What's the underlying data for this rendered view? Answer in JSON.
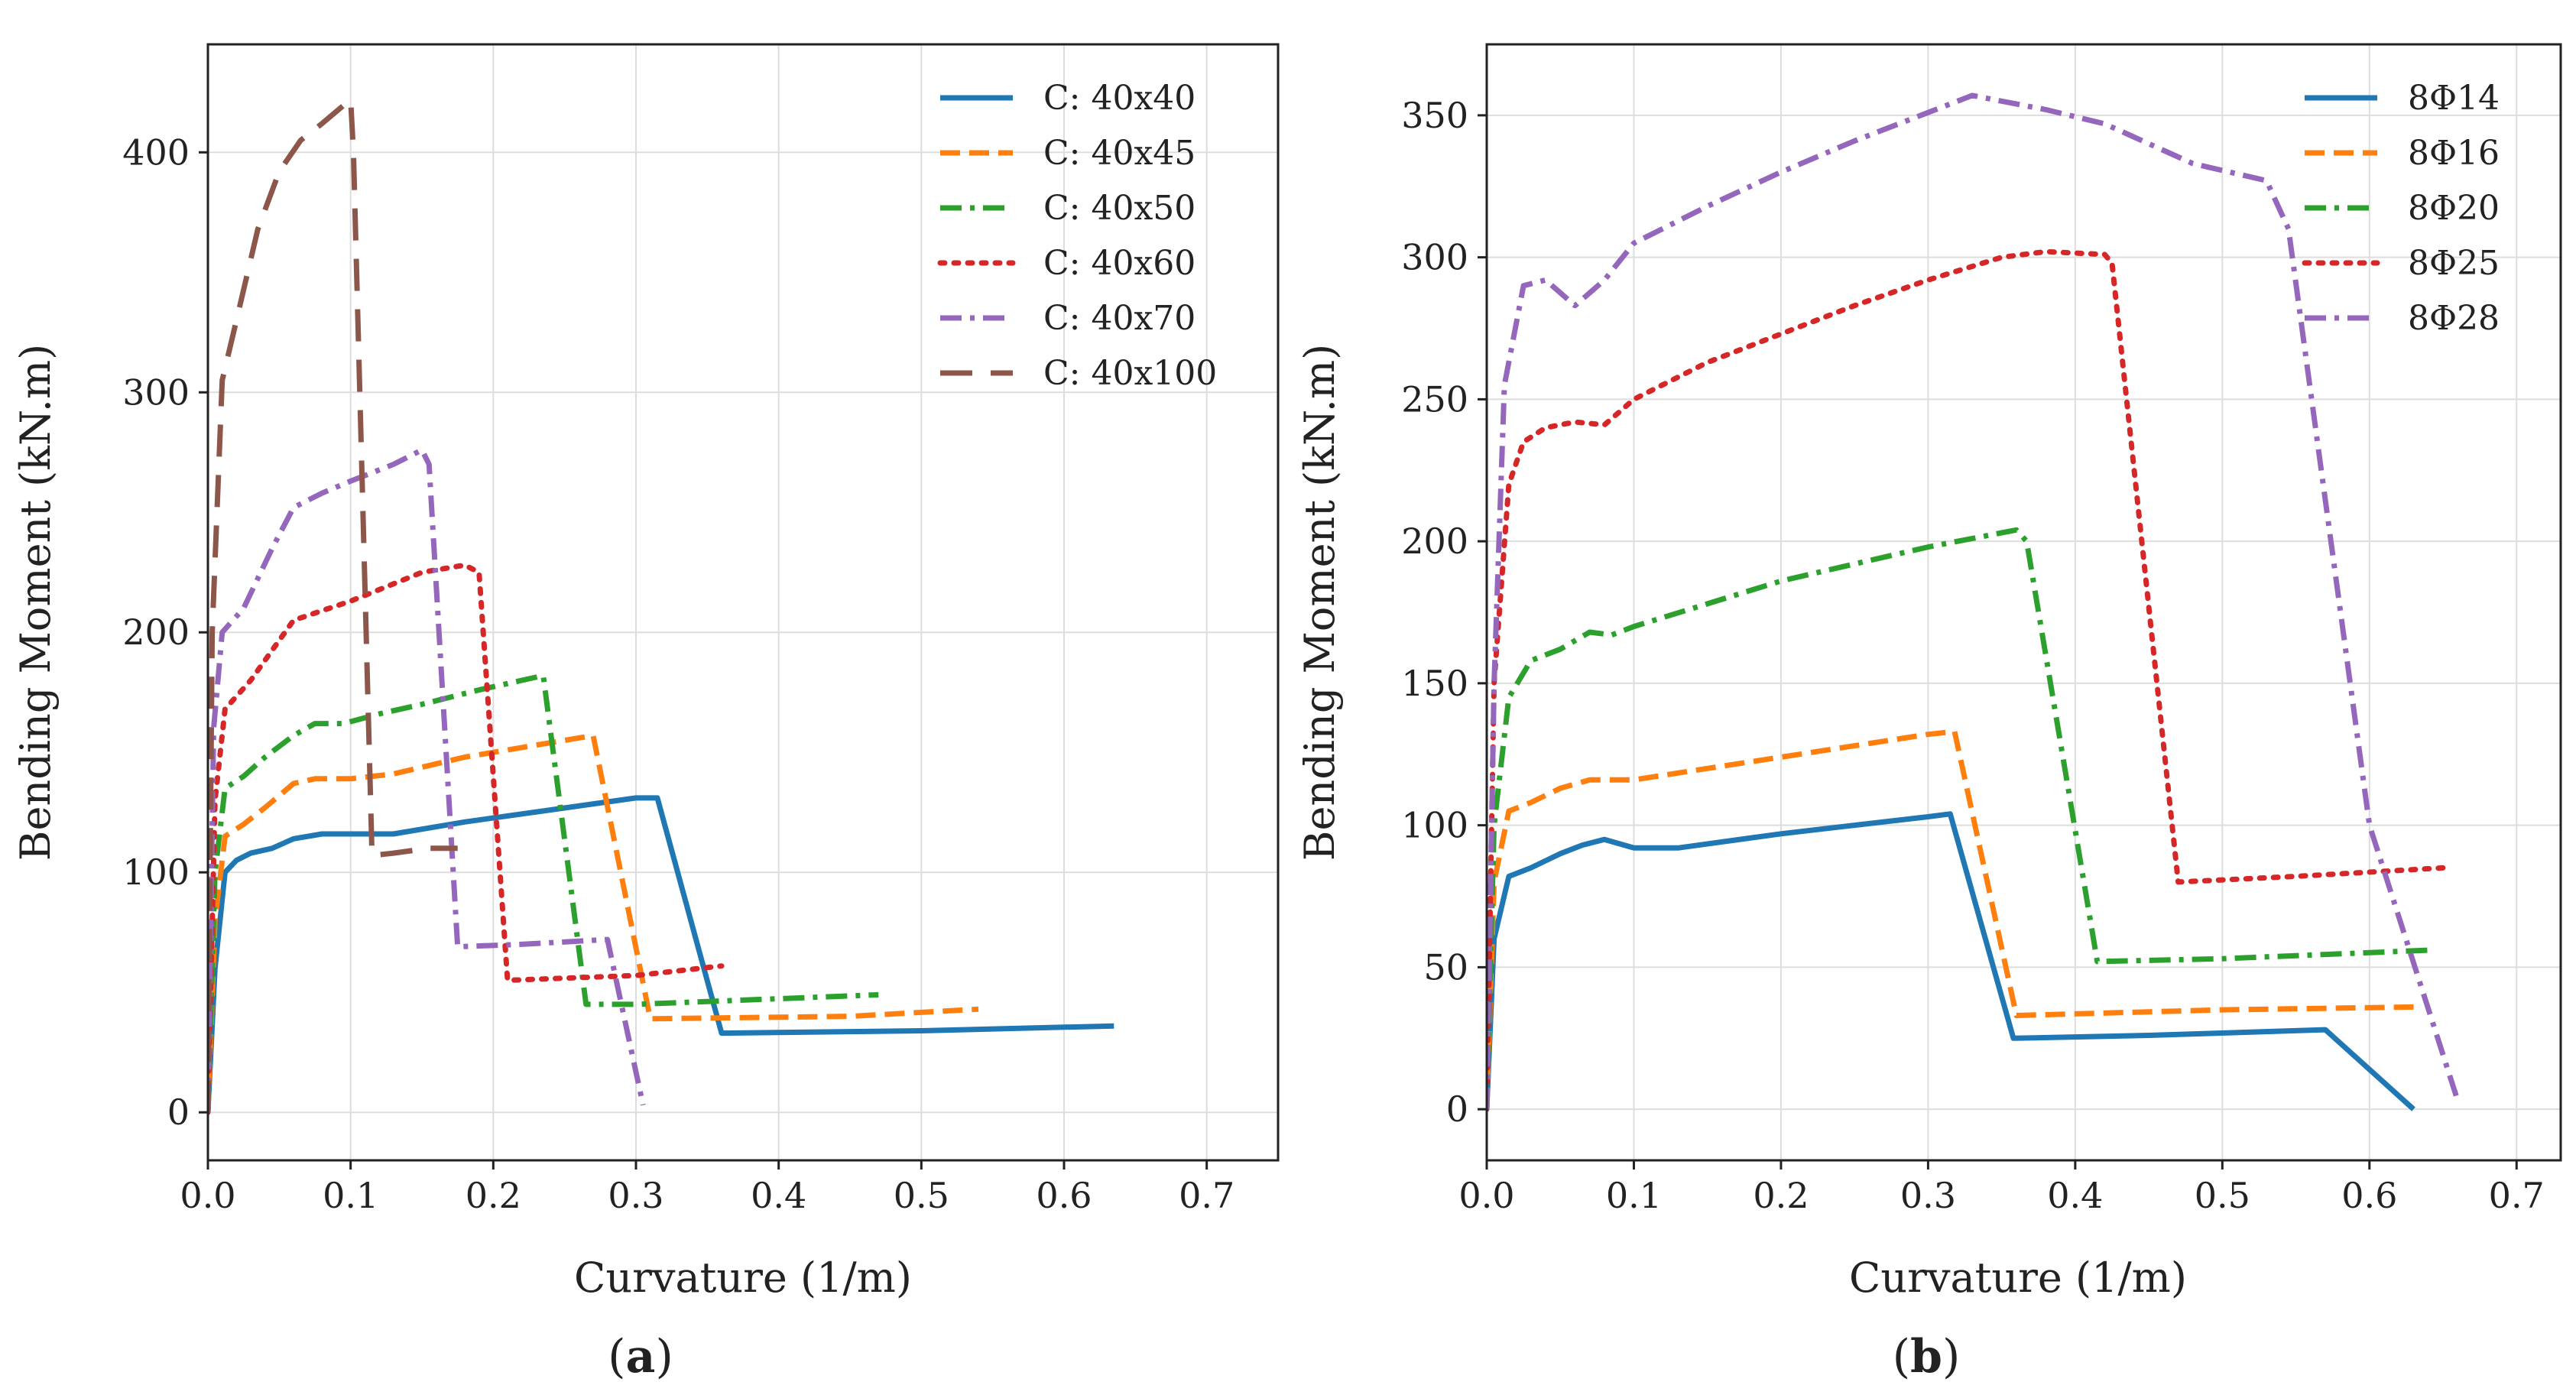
{
  "colors": {
    "blue": "#1f77b4",
    "orange": "#ff7f0e",
    "green": "#2ca02c",
    "red": "#d62728",
    "purple": "#9467bd",
    "brown": "#8c564b"
  },
  "chart_data": [
    {
      "type": "line",
      "panel_label": "a",
      "xlabel": "Curvature (1/m)",
      "ylabel": "Bending Moment (kN.m)",
      "xlim": [
        0,
        0.75
      ],
      "ylim": [
        -20,
        445
      ],
      "xticks": [
        "0.0",
        "0.1",
        "0.2",
        "0.3",
        "0.4",
        "0.5",
        "0.6",
        "0.7"
      ],
      "yticks": [
        "0",
        "100",
        "200",
        "300",
        "400"
      ],
      "grid": true,
      "legend_position": "top-right",
      "series": [
        {
          "name": "C: 40x40",
          "color": "blue",
          "dash": "solid",
          "x": [
            0,
            0.005,
            0.012,
            0.02,
            0.03,
            0.045,
            0.06,
            0.08,
            0.1,
            0.13,
            0.18,
            0.24,
            0.3,
            0.315,
            0.36,
            0.5,
            0.635
          ],
          "y": [
            0,
            60,
            100,
            105,
            108,
            110,
            114,
            116,
            116,
            116,
            121,
            126,
            131,
            131,
            33,
            34,
            36
          ]
        },
        {
          "name": "C: 40x45",
          "color": "orange",
          "dash": "dashed",
          "x": [
            0,
            0.005,
            0.012,
            0.025,
            0.04,
            0.06,
            0.075,
            0.1,
            0.13,
            0.18,
            0.23,
            0.27,
            0.31,
            0.45,
            0.54
          ],
          "y": [
            0,
            80,
            115,
            120,
            127,
            137,
            139,
            139,
            141,
            148,
            153,
            157,
            39,
            40,
            43
          ]
        },
        {
          "name": "C: 40x50",
          "color": "green",
          "dash": "dashdot",
          "x": [
            0,
            0.005,
            0.012,
            0.025,
            0.04,
            0.06,
            0.075,
            0.095,
            0.12,
            0.15,
            0.19,
            0.235,
            0.265,
            0.3,
            0.47
          ],
          "y": [
            0,
            100,
            135,
            140,
            148,
            157,
            162,
            162,
            166,
            170,
            176,
            182,
            45,
            45,
            49
          ]
        },
        {
          "name": "C: 40x60",
          "color": "red",
          "dash": "dotted",
          "x": [
            0,
            0.005,
            0.012,
            0.03,
            0.06,
            0.1,
            0.15,
            0.18,
            0.19,
            0.21,
            0.3,
            0.36
          ],
          "y": [
            0,
            130,
            168,
            180,
            205,
            213,
            225,
            228,
            225,
            55,
            57,
            61
          ]
        },
        {
          "name": "C: 40x70",
          "color": "purple",
          "dash": "dashdot",
          "x": [
            0,
            0.004,
            0.01,
            0.025,
            0.045,
            0.06,
            0.08,
            0.1,
            0.13,
            0.15,
            0.155,
            0.175,
            0.22,
            0.28,
            0.305
          ],
          "y": [
            0,
            160,
            200,
            210,
            235,
            252,
            258,
            263,
            270,
            276,
            270,
            69,
            70,
            72,
            3
          ]
        },
        {
          "name": "C: 40x100",
          "color": "brown",
          "dash": "longdash",
          "x": [
            0,
            0.003,
            0.01,
            0.02,
            0.035,
            0.05,
            0.065,
            0.08,
            0.1,
            0.102,
            0.115,
            0.13,
            0.155,
            0.175
          ],
          "y": [
            0,
            200,
            305,
            330,
            368,
            392,
            405,
            412,
            422,
            400,
            107,
            108,
            110,
            110
          ]
        }
      ]
    },
    {
      "type": "line",
      "panel_label": "b",
      "xlabel": "Curvature (1/m)",
      "ylabel": "Bending Moment (kN.m)",
      "xlim": [
        0,
        0.73
      ],
      "ylim": [
        -18,
        375
      ],
      "xticks": [
        "0.0",
        "0.1",
        "0.2",
        "0.3",
        "0.4",
        "0.5",
        "0.6",
        "0.7"
      ],
      "yticks": [
        "0",
        "50",
        "100",
        "150",
        "200",
        "250",
        "300",
        "350"
      ],
      "grid": true,
      "legend_position": "top-right",
      "series": [
        {
          "name": "8Φ14",
          "color": "blue",
          "dash": "solid",
          "x": [
            0,
            0.005,
            0.015,
            0.03,
            0.05,
            0.065,
            0.08,
            0.1,
            0.13,
            0.2,
            0.25,
            0.3,
            0.315,
            0.358,
            0.45,
            0.57,
            0.63
          ],
          "y": [
            0,
            60,
            82,
            85,
            90,
            93,
            95,
            92,
            92,
            97,
            100,
            103,
            104,
            25,
            26,
            28,
            0
          ]
        },
        {
          "name": "8Φ16",
          "color": "orange",
          "dash": "dashed",
          "x": [
            0,
            0.005,
            0.015,
            0.03,
            0.05,
            0.07,
            0.1,
            0.15,
            0.2,
            0.25,
            0.3,
            0.318,
            0.36,
            0.5,
            0.63
          ],
          "y": [
            0,
            80,
            105,
            108,
            113,
            116,
            116,
            120,
            124,
            128,
            132,
            133,
            33,
            35,
            36
          ]
        },
        {
          "name": "8Φ20",
          "color": "green",
          "dash": "dashdot",
          "x": [
            0,
            0.005,
            0.015,
            0.03,
            0.05,
            0.07,
            0.085,
            0.1,
            0.15,
            0.2,
            0.25,
            0.3,
            0.36,
            0.367,
            0.415,
            0.5,
            0.64
          ],
          "y": [
            0,
            100,
            145,
            158,
            162,
            168,
            167,
            170,
            178,
            186,
            192,
            198,
            204,
            200,
            52,
            53,
            56
          ]
        },
        {
          "name": "8Φ25",
          "color": "red",
          "dash": "dotted",
          "x": [
            0,
            0.005,
            0.015,
            0.025,
            0.04,
            0.06,
            0.08,
            0.1,
            0.15,
            0.2,
            0.25,
            0.3,
            0.35,
            0.38,
            0.42,
            0.425,
            0.47,
            0.55,
            0.65
          ],
          "y": [
            0,
            150,
            220,
            235,
            240,
            242,
            241,
            250,
            263,
            273,
            283,
            292,
            300,
            302,
            301,
            298,
            80,
            82,
            85
          ]
        },
        {
          "name": "8Φ28",
          "color": "purple",
          "dash": "dashdot",
          "x": [
            0,
            0.005,
            0.012,
            0.025,
            0.04,
            0.06,
            0.08,
            0.1,
            0.15,
            0.2,
            0.25,
            0.3,
            0.33,
            0.38,
            0.42,
            0.48,
            0.53,
            0.545,
            0.6,
            0.66
          ],
          "y": [
            0,
            150,
            255,
            290,
            292,
            283,
            292,
            305,
            318,
            330,
            341,
            351,
            357,
            352,
            347,
            333,
            327,
            310,
            100,
            3
          ]
        }
      ]
    }
  ]
}
